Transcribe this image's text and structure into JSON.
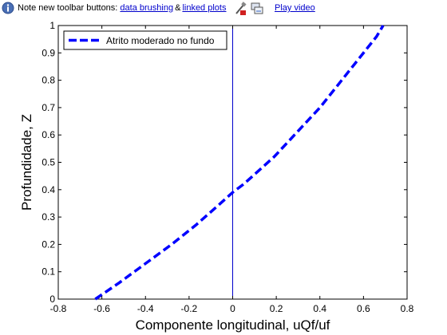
{
  "infobar": {
    "note": "Note new toolbar buttons:",
    "link_brushing": "data brushing",
    "amp": "&",
    "link_linked": "linked plots",
    "link_play": "Play video",
    "info_icon": "info-icon",
    "brush_icon": "brush-icon",
    "linked_icon": "linked-plots-icon"
  },
  "colors": {
    "curve": "#0000ff",
    "vline": "#0000cc",
    "axis": "#000000"
  },
  "chart_data": {
    "type": "line",
    "xlabel": "Componente longitudinal, uQf/uf",
    "ylabel": "Profundidade, Z",
    "xlim": [
      -0.8,
      0.8
    ],
    "ylim": [
      0,
      1
    ],
    "xticks": [
      "-0.8",
      "-0.6",
      "-0.4",
      "-0.2",
      "0",
      "0.2",
      "0.4",
      "0.6",
      "0.8"
    ],
    "yticks": [
      "0",
      "0.1",
      "0.2",
      "0.3",
      "0.4",
      "0.5",
      "0.6",
      "0.7",
      "0.8",
      "0.9",
      "1"
    ],
    "grid": false,
    "legend_position": "top-left",
    "series": [
      {
        "name": "Atrito moderado no fundo",
        "style": "dashed",
        "x": [
          -0.63,
          -0.52,
          -0.4,
          -0.28,
          -0.17,
          -0.07,
          0.0,
          0.05,
          0.12,
          0.19,
          0.26,
          0.33,
          0.4,
          0.47,
          0.54,
          0.61,
          0.66,
          0.69
        ],
        "y": [
          0.0,
          0.06,
          0.13,
          0.2,
          0.27,
          0.34,
          0.39,
          0.42,
          0.47,
          0.52,
          0.58,
          0.64,
          0.7,
          0.77,
          0.84,
          0.91,
          0.96,
          1.0
        ]
      }
    ],
    "vertical_line": {
      "x": 0
    }
  }
}
